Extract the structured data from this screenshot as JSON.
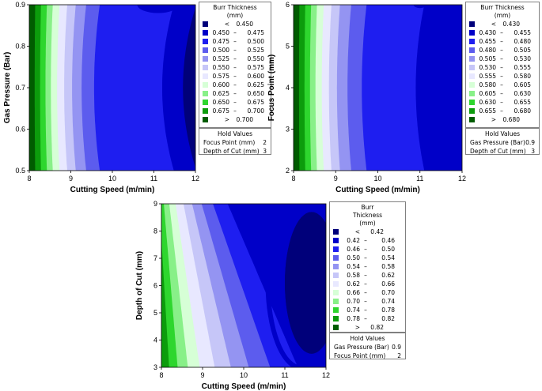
{
  "chart_data": [
    {
      "type": "contour",
      "xlabel": "Cutting Speed (m/min)",
      "ylabel": "Gas Pressure (Bar)",
      "xlim": [
        8,
        12
      ],
      "ylim": [
        0.5,
        0.9
      ],
      "xticks": [
        "8",
        "9",
        "10",
        "11",
        "12"
      ],
      "yticks": [
        "0.5",
        "0.6",
        "0.7",
        "0.8",
        "0.9"
      ],
      "legend_title": [
        "Burr Thickness",
        "(mm)"
      ],
      "legend_position": "right",
      "levels": [
        {
          "lo": "<",
          "hi": "0.450",
          "color": "#00007a"
        },
        {
          "lo": "0.450",
          "hi": "0.475",
          "color": "#0000c8"
        },
        {
          "lo": "0.475",
          "hi": "0.500",
          "color": "#1e1ef0"
        },
        {
          "lo": "0.500",
          "hi": "0.525",
          "color": "#5c5cee"
        },
        {
          "lo": "0.525",
          "hi": "0.550",
          "color": "#9494f2"
        },
        {
          "lo": "0.550",
          "hi": "0.575",
          "color": "#c6c6f8"
        },
        {
          "lo": "0.575",
          "hi": "0.600",
          "color": "#e8e8ff"
        },
        {
          "lo": "0.600",
          "hi": "0.625",
          "color": "#d6ffd6"
        },
        {
          "lo": "0.625",
          "hi": "0.650",
          "color": "#88f088"
        },
        {
          "lo": "0.650",
          "hi": "0.675",
          "color": "#2ed62e"
        },
        {
          "lo": "0.675",
          "hi": "0.700",
          "color": "#0c9c0c"
        },
        {
          "lo": ">",
          "hi": "0.700",
          "color": "#005c00"
        }
      ],
      "hold": {
        "title": "Hold Values",
        "rows": [
          [
            "Focus Point (mm)",
            "2"
          ],
          [
            "Depth of Cut (mm)",
            "3"
          ]
        ]
      },
      "field": {
        "band_edges": [
          8.13,
          8.26,
          8.39,
          8.52,
          8.67,
          8.84,
          9.03,
          9.26,
          9.56,
          11.2,
          11.7
        ],
        "curvature": 0.35,
        "dark_region": {
          "cx": 11.1,
          "cy": 0.9,
          "rx": 0.5,
          "ry": 0.02
        },
        "right_edge_band": {
          "x_start": 11.85,
          "y_center": 0.7,
          "half_height": 0.08
        }
      }
    },
    {
      "type": "contour",
      "xlabel": "Cutting Speed (m/min)",
      "ylabel": "Focus Point (mm)",
      "xlim": [
        8,
        12
      ],
      "ylim": [
        2,
        6
      ],
      "xticks": [
        "8",
        "9",
        "10",
        "11",
        "12"
      ],
      "yticks": [
        "2",
        "3",
        "4",
        "5",
        "6"
      ],
      "legend_title": [
        "Burr Thickness",
        "(mm)"
      ],
      "legend_position": "right",
      "levels": [
        {
          "lo": "<",
          "hi": "0.430",
          "color": "#00007a"
        },
        {
          "lo": "0.430",
          "hi": "0.455",
          "color": "#0000c8"
        },
        {
          "lo": "0.455",
          "hi": "0.480",
          "color": "#1e1ef0"
        },
        {
          "lo": "0.480",
          "hi": "0.505",
          "color": "#5c5cee"
        },
        {
          "lo": "0.505",
          "hi": "0.530",
          "color": "#9494f2"
        },
        {
          "lo": "0.530",
          "hi": "0.555",
          "color": "#c6c6f8"
        },
        {
          "lo": "0.555",
          "hi": "0.580",
          "color": "#e8e8ff"
        },
        {
          "lo": "0.580",
          "hi": "0.605",
          "color": "#d6ffd6"
        },
        {
          "lo": "0.605",
          "hi": "0.630",
          "color": "#88f088"
        },
        {
          "lo": "0.630",
          "hi": "0.655",
          "color": "#2ed62e"
        },
        {
          "lo": "0.655",
          "hi": "0.680",
          "color": "#0c9c0c"
        },
        {
          "lo": ">",
          "hi": "0.680",
          "color": "#005c00"
        }
      ],
      "hold": {
        "title": "Hold Values",
        "rows": [
          [
            "Gas Pressure (Bar)",
            "0.9"
          ],
          [
            "Depth of Cut (mm)",
            "3"
          ]
        ]
      },
      "field": {
        "band_edges": [
          8.13,
          8.26,
          8.39,
          8.52,
          8.67,
          8.84,
          9.03,
          9.28,
          9.62,
          10.9
        ],
        "curvature": 0.28,
        "dark_region": {
          "cx": 11.0,
          "cy": 6.0,
          "rx": 0.15,
          "ry": 0.08
        }
      }
    },
    {
      "type": "contour",
      "xlabel": "Cutting Speed (m/min)",
      "ylabel": "Depth of Cut (mm)",
      "xlim": [
        8,
        12
      ],
      "ylim": [
        3,
        9
      ],
      "xticks": [
        "8",
        "9",
        "10",
        "11",
        "12"
      ],
      "yticks": [
        "3",
        "4",
        "5",
        "6",
        "7",
        "8",
        "9"
      ],
      "legend_title": [
        "Burr",
        "Thickness",
        "(mm)"
      ],
      "legend_position": "right",
      "levels": [
        {
          "lo": "<",
          "hi": "0.42",
          "color": "#00007a"
        },
        {
          "lo": "0.42",
          "hi": "0.46",
          "color": "#0000c8"
        },
        {
          "lo": "0.46",
          "hi": "0.50",
          "color": "#1e1ef0"
        },
        {
          "lo": "0.50",
          "hi": "0.54",
          "color": "#5c5cee"
        },
        {
          "lo": "0.54",
          "hi": "0.58",
          "color": "#9494f2"
        },
        {
          "lo": "0.58",
          "hi": "0.62",
          "color": "#c6c6f8"
        },
        {
          "lo": "0.62",
          "hi": "0.66",
          "color": "#e8e8ff"
        },
        {
          "lo": "0.66",
          "hi": "0.70",
          "color": "#d6ffd6"
        },
        {
          "lo": "0.70",
          "hi": "0.74",
          "color": "#88f088"
        },
        {
          "lo": "0.74",
          "hi": "0.78",
          "color": "#2ed62e"
        },
        {
          "lo": "0.78",
          "hi": "0.82",
          "color": "#0c9c0c"
        },
        {
          "lo": ">",
          "hi": "0.82",
          "color": "#005c00"
        }
      ],
      "hold": {
        "title": "Hold Values",
        "rows": [
          [
            "Gas Pressure (Bar)",
            "0.9"
          ],
          [
            "Focus Point (mm)",
            "2"
          ]
        ]
      },
      "field": {
        "band_edges": [
          8.0,
          8.18,
          8.38,
          8.62,
          8.9,
          9.25,
          9.63,
          10.05,
          10.55,
          11.2
        ],
        "curvature": 0.18,
        "diagonal": true,
        "dark_region": {
          "cx": 11.65,
          "cy": 6.1,
          "rx": 0.65,
          "ry": 2.6
        }
      }
    }
  ]
}
